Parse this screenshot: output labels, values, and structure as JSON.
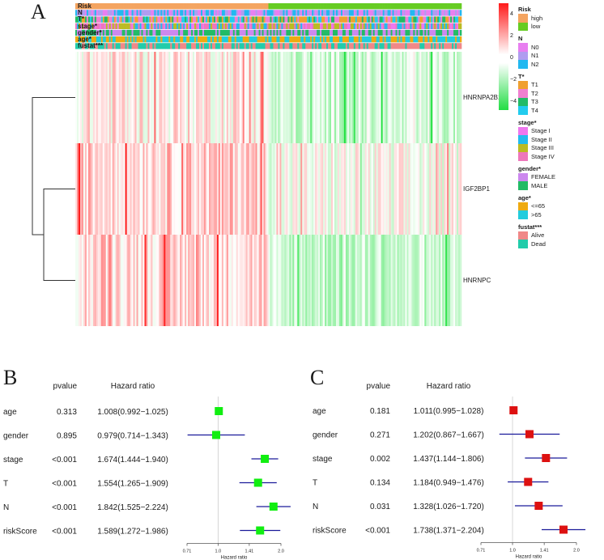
{
  "panels": {
    "a": "A",
    "b": "B",
    "c": "C"
  },
  "annotation_tracks": [
    "Risk",
    "N",
    "T*",
    "stage*",
    "gender*",
    "age*",
    "fustat***"
  ],
  "genes": [
    "HNRNPA2B1",
    "IGF2BP1",
    "HNRNPC"
  ],
  "color_key": {
    "ticks": [
      "4",
      "2",
      "0",
      "−2",
      "−4"
    ],
    "high_color": "#ff1a1a",
    "low_color": "#22dd44"
  },
  "legend": [
    {
      "title": "Risk",
      "items": [
        {
          "label": "high",
          "color": "#f4a460"
        },
        {
          "label": "low",
          "color": "#66cc22"
        }
      ]
    },
    {
      "title": "N",
      "items": [
        {
          "label": "N0",
          "color": "#e87ff0"
        },
        {
          "label": "N1",
          "color": "#b09cf0"
        },
        {
          "label": "N2",
          "color": "#22b8f0"
        }
      ]
    },
    {
      "title": "T*",
      "items": [
        {
          "label": "T1",
          "color": "#f0a030"
        },
        {
          "label": "T2",
          "color": "#f080d0"
        },
        {
          "label": "T3",
          "color": "#22bb66"
        },
        {
          "label": "T4",
          "color": "#22ccee"
        }
      ]
    },
    {
      "title": "stage*",
      "items": [
        {
          "label": "Stage I",
          "color": "#ee77ee"
        },
        {
          "label": "Stage II",
          "color": "#22bbee"
        },
        {
          "label": "Stage III",
          "color": "#bbbb22"
        },
        {
          "label": "Stage IV",
          "color": "#ee77bb"
        }
      ]
    },
    {
      "title": "gender*",
      "items": [
        {
          "label": "FEMALE",
          "color": "#cc88ee"
        },
        {
          "label": "MALE",
          "color": "#22bb66"
        }
      ]
    },
    {
      "title": "age*",
      "items": [
        {
          "label": "<=65",
          "color": "#eeaa11"
        },
        {
          "label": ">65",
          "color": "#22ccdd"
        }
      ]
    },
    {
      "title": "fustat***",
      "items": [
        {
          "label": "Alive",
          "color": "#f08888"
        },
        {
          "label": "Dead",
          "color": "#22ccaa"
        }
      ]
    }
  ],
  "chart_data": [
    {
      "type": "heatmap",
      "title": "",
      "rows": [
        "HNRNPA2B1",
        "IGF2BP1",
        "HNRNPC"
      ],
      "column_groups": [
        "high",
        "low"
      ],
      "annotation_tracks": [
        "Risk",
        "N",
        "T*",
        "stage*",
        "gender*",
        "age*",
        "fustat***"
      ],
      "color_scale": [
        -4,
        4
      ]
    },
    {
      "type": "forest",
      "panel": "B",
      "header": {
        "pvalue": "pvalue",
        "hr": "Hazard ratio"
      },
      "variables": [
        "age",
        "gender",
        "stage",
        "T",
        "N",
        "riskScore"
      ],
      "pvalues": [
        "0.313",
        "0.895",
        "<0.001",
        "<0.001",
        "<0.001",
        "<0.001"
      ],
      "hr_text": [
        "1.008(0.992−1.025)",
        "0.979(0.714−1.343)",
        "1.674(1.444−1.940)",
        "1.554(1.265−1.909)",
        "1.842(1.525−2.224)",
        "1.589(1.272−1.986)"
      ],
      "hr": [
        1.008,
        0.979,
        1.674,
        1.554,
        1.842,
        1.589
      ],
      "lower": [
        0.992,
        0.714,
        1.444,
        1.265,
        1.525,
        1.272
      ],
      "upper": [
        1.025,
        1.343,
        1.94,
        1.909,
        2.224,
        1.986
      ],
      "scale": "log",
      "xlim": [
        0.71,
        2.0
      ],
      "xticks": [
        "0.71",
        "1.0",
        "1.41",
        "2.0"
      ],
      "xlabel": "Hazard ratio",
      "marker_color": "#11ee11"
    },
    {
      "type": "forest",
      "panel": "C",
      "header": {
        "pvalue": "pvalue",
        "hr": "Hazard ratio"
      },
      "variables": [
        "age",
        "gender",
        "stage",
        "T",
        "N",
        "riskScore"
      ],
      "pvalues": [
        "0.181",
        "0.271",
        "0.002",
        "0.134",
        "0.031",
        "<0.001"
      ],
      "hr_text": [
        "1.011(0.995−1.028)",
        "1.202(0.867−1.667)",
        "1.437(1.144−1.806)",
        "1.184(0.949−1.476)",
        "1.328(1.026−1.720)",
        "1.738(1.371−2.204)"
      ],
      "hr": [
        1.011,
        1.202,
        1.437,
        1.184,
        1.328,
        1.738
      ],
      "lower": [
        0.995,
        0.867,
        1.144,
        0.949,
        1.026,
        1.371
      ],
      "upper": [
        1.028,
        1.667,
        1.806,
        1.476,
        1.72,
        2.204
      ],
      "scale": "log",
      "xlim": [
        0.71,
        2.0
      ],
      "xticks": [
        "0.71",
        "1.0",
        "1.41",
        "2.0"
      ],
      "xlabel": "Hazard ratio",
      "marker_color": "#dd1111"
    }
  ]
}
